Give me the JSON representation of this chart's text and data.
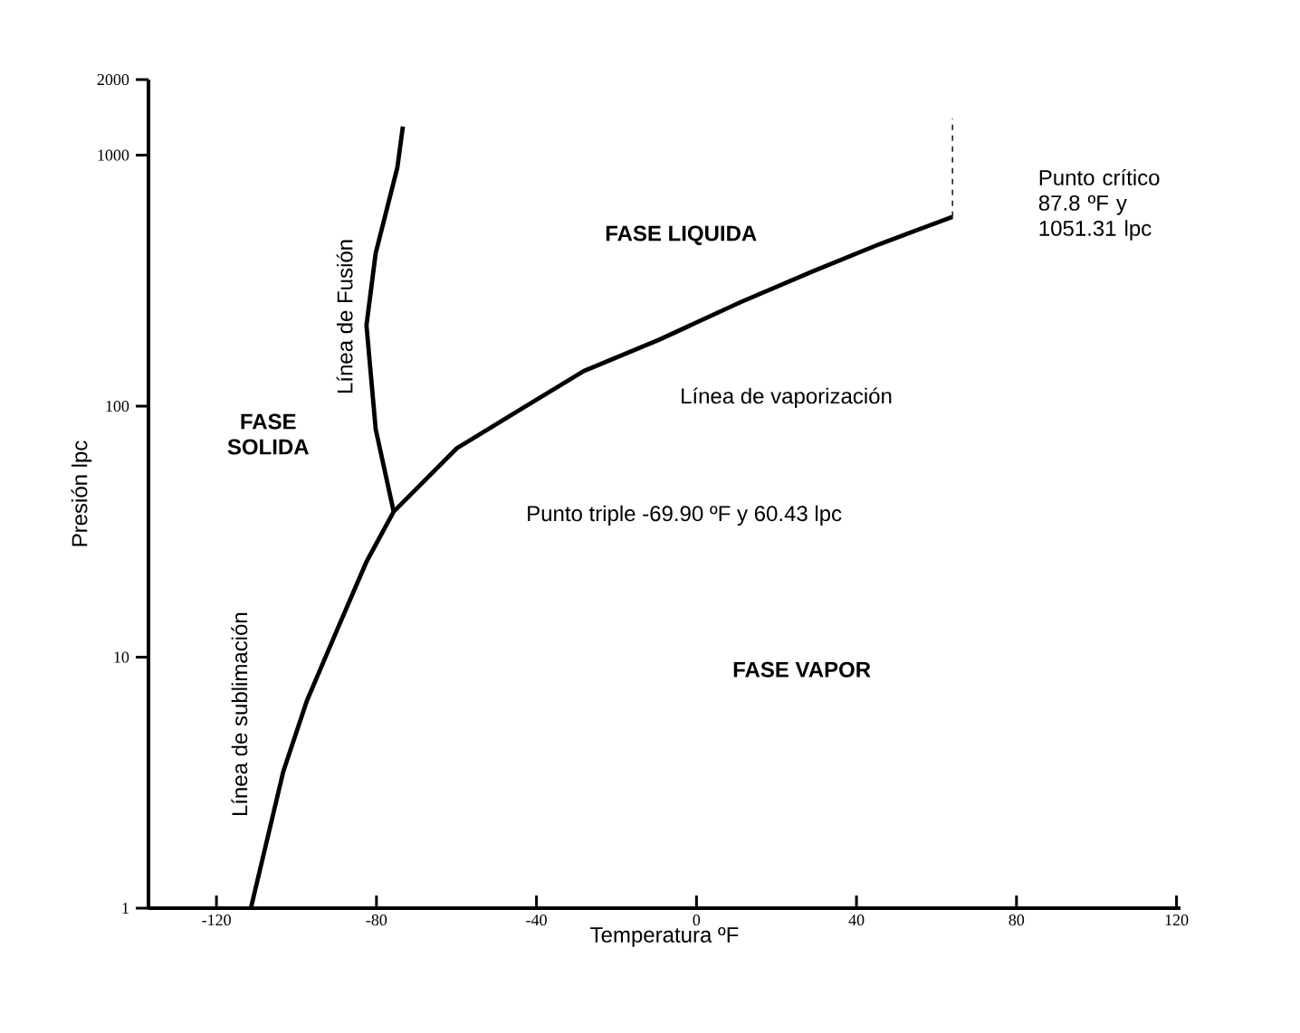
{
  "chart_data": {
    "type": "line",
    "xlabel": "Temperatura ºF",
    "ylabel": "Presión lpc",
    "log": "y",
    "marker": "none",
    "xlim": [
      -137,
      121
    ],
    "ylim": [
      1,
      2000
    ],
    "xticks": [
      -120,
      -80,
      -40,
      0,
      40,
      80,
      120
    ],
    "yticks": [
      1,
      10,
      100,
      1000,
      2000
    ],
    "series": [
      {
        "color": "#000000",
        "x": [
          -111.4,
          -103.3,
          -97.4,
          -89.7,
          -82.5,
          -75.7,
          -59.9,
          -44.5,
          -28.2,
          -9.3,
          11.1,
          29.2,
          45.9,
          64.0
        ],
        "values": [
          1,
          3.5,
          6.7,
          13,
          24,
          38,
          68,
          96,
          138,
          184,
          260,
          345,
          443,
          568
        ]
      },
      {
        "color": "#000000",
        "x": [
          -75.7,
          -80.2,
          -82.5,
          -80.2,
          -74.8,
          -73.4
        ],
        "values": [
          38,
          81,
          210,
          407,
          889,
          1300
        ]
      },
      {
        "color": "#000000",
        "line_style": "dashed",
        "x": [
          64.0,
          64.0
        ],
        "values": [
          568,
          1400
        ]
      }
    ],
    "annotations": [
      "FASE LIQUIDA",
      "FASE SOLIDA",
      "FASE VAPOR",
      "Línea de vaporización",
      "Línea de Fusión",
      "Línea de sublimación",
      "Punto triple -69.90 ºF y 60.43 lpc",
      "Punto crítico 87.8 ºF y 1051.31 lpc"
    ]
  }
}
